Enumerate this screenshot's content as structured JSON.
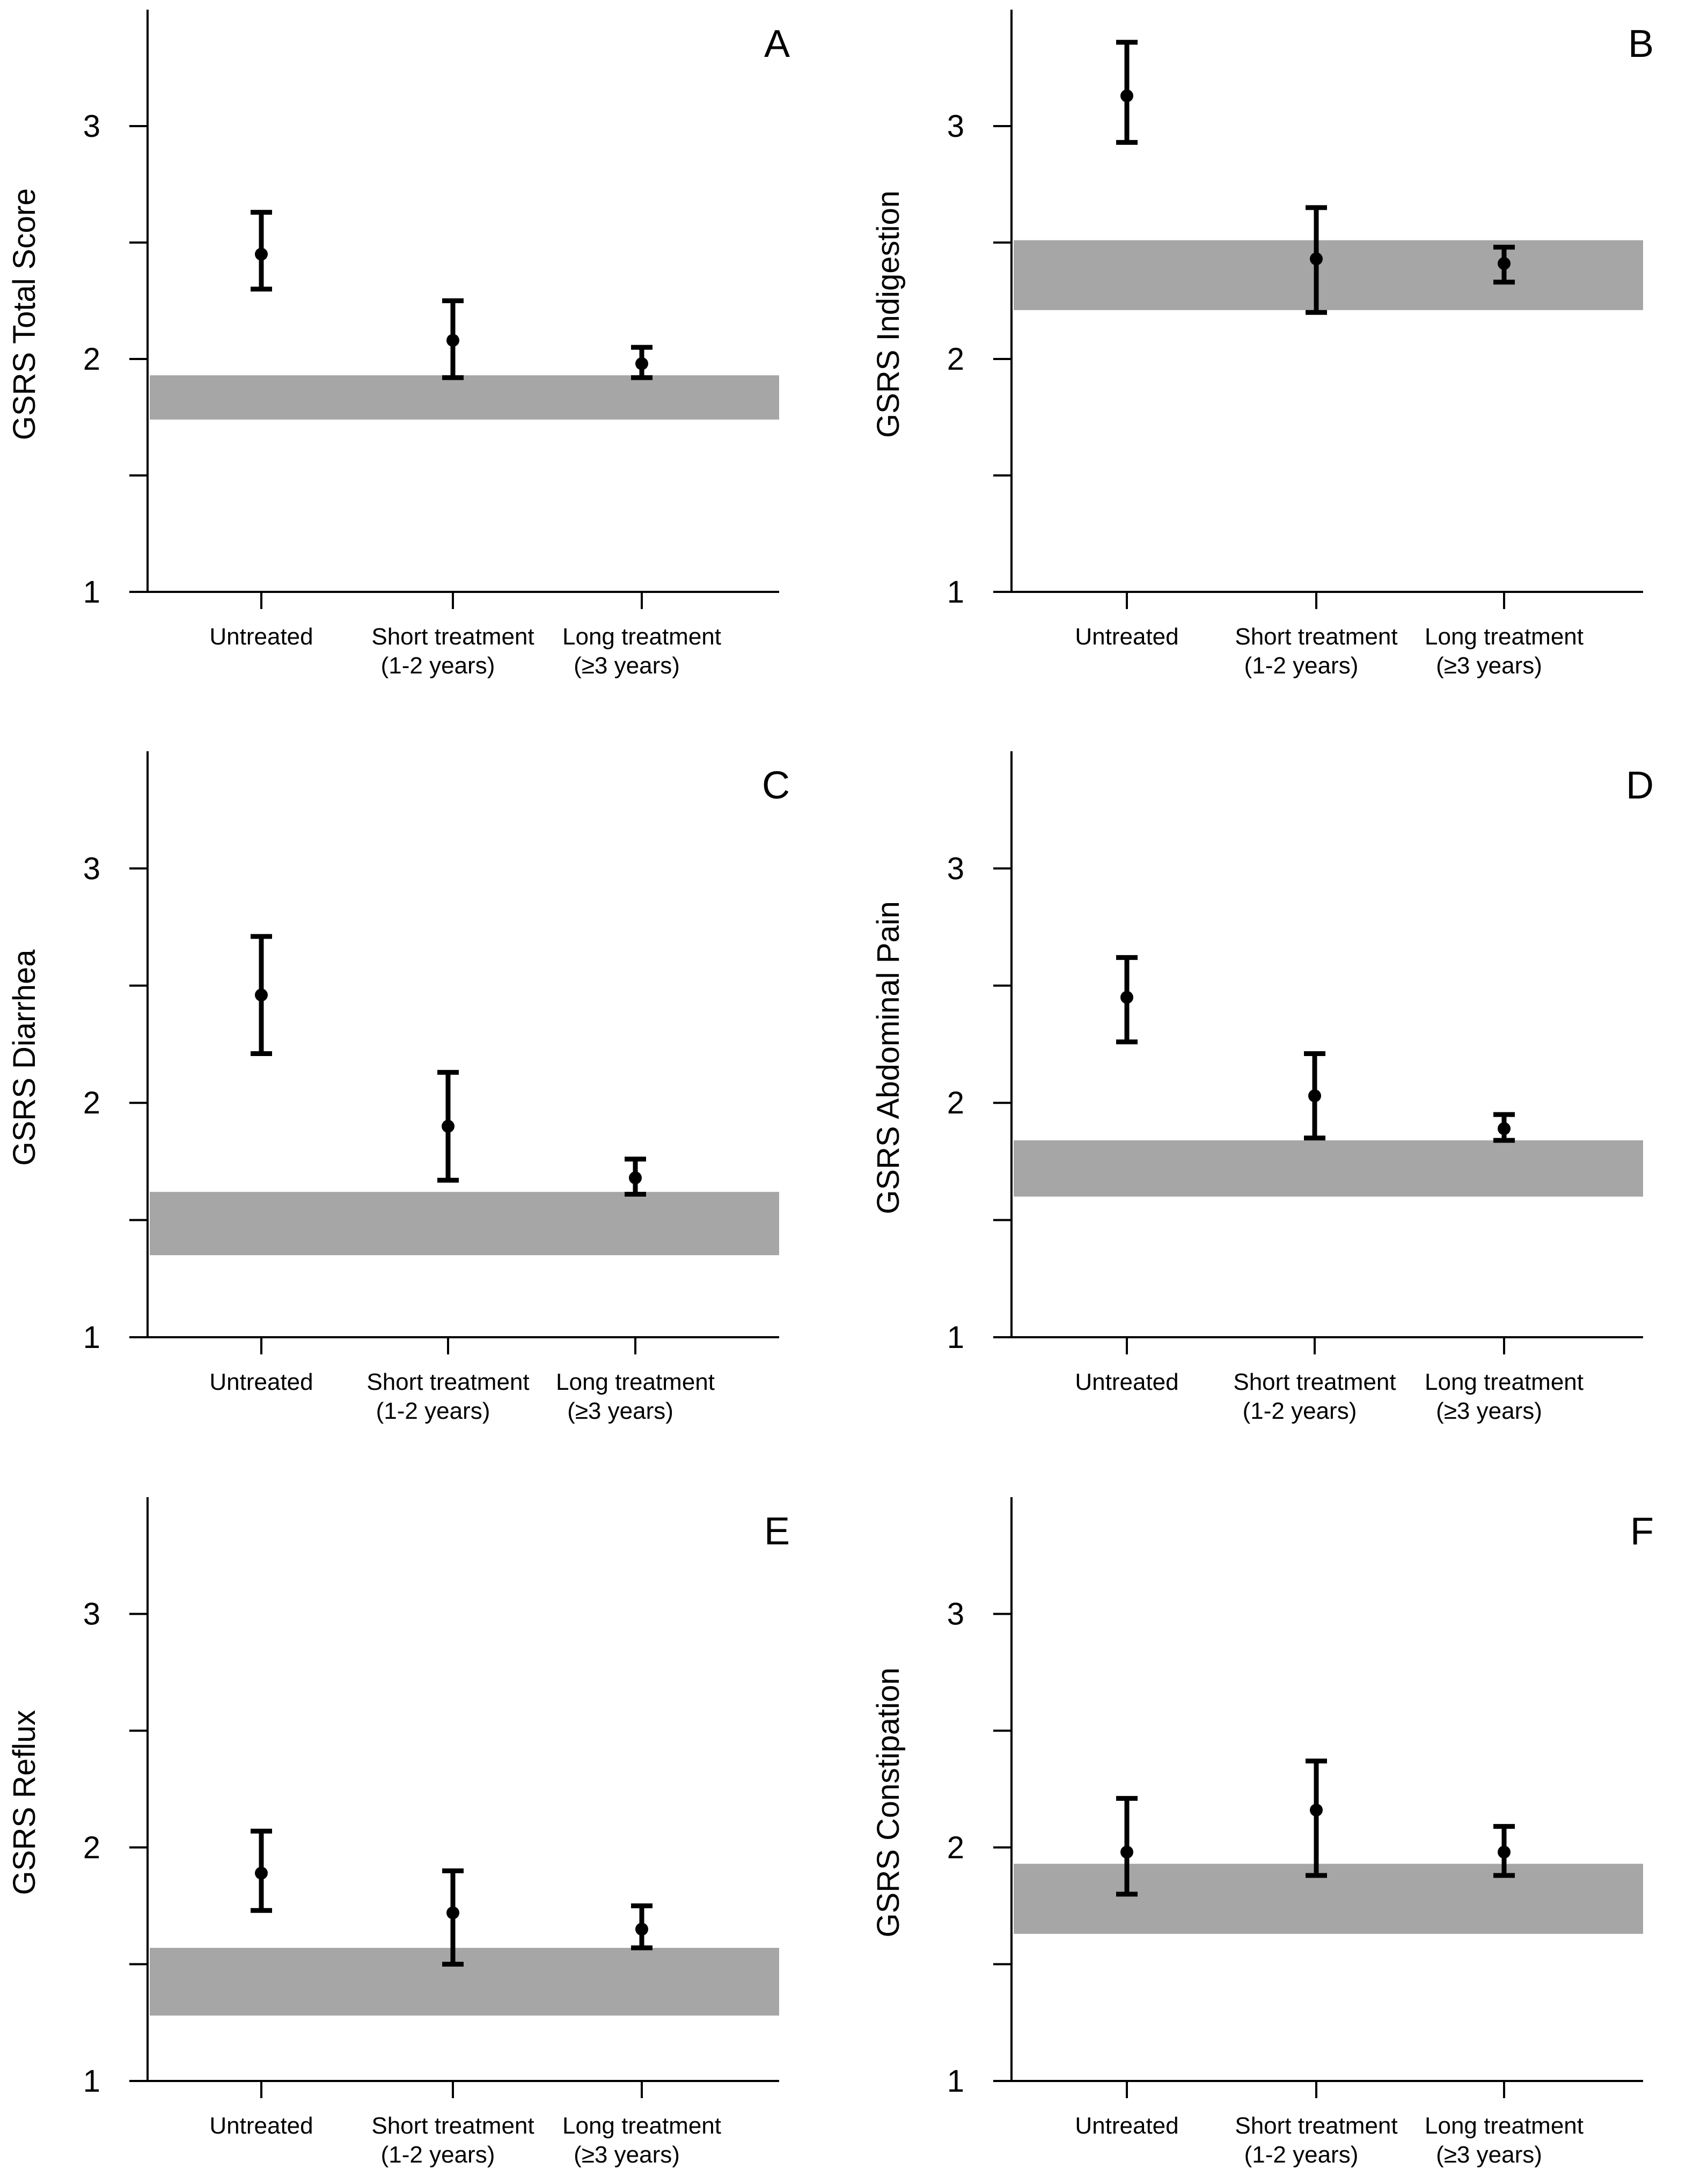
{
  "colors": {
    "reference_band": "#a6a6a6",
    "marks": "#000000",
    "background": "#ffffff"
  },
  "chart_data": [
    {
      "type": "scatter",
      "panel": "A",
      "ylabel": "GSRS Total Score",
      "ylim": [
        1,
        3.5
      ],
      "yticks": [
        1,
        1.5,
        2,
        2.5,
        3
      ],
      "ytick_labels": [
        "1",
        "",
        "2",
        "",
        "3"
      ],
      "categories": [
        [
          "Untreated"
        ],
        [
          "Short treatment",
          "(1-2 years)"
        ],
        [
          "Long treatment",
          "(≥3 years)"
        ]
      ],
      "values": [
        2.45,
        2.08,
        1.98
      ],
      "error_low": [
        2.3,
        1.92,
        1.92
      ],
      "error_high": [
        2.63,
        2.25,
        2.05
      ],
      "reference_band": [
        1.74,
        1.93
      ]
    },
    {
      "type": "scatter",
      "panel": "B",
      "ylabel": "GSRS Indigestion",
      "ylim": [
        1,
        3.5
      ],
      "yticks": [
        1,
        1.5,
        2,
        2.5,
        3
      ],
      "ytick_labels": [
        "1",
        "",
        "2",
        "",
        "3"
      ],
      "categories": [
        [
          "Untreated"
        ],
        [
          "Short treatment",
          "(1-2 years)"
        ],
        [
          "Long treatment",
          "(≥3 years)"
        ]
      ],
      "values": [
        3.13,
        2.43,
        2.41
      ],
      "error_low": [
        2.93,
        2.2,
        2.33
      ],
      "error_high": [
        3.36,
        2.65,
        2.48
      ],
      "reference_band": [
        2.21,
        2.51
      ]
    },
    {
      "type": "scatter",
      "panel": "C",
      "ylabel": "GSRS Diarrhea",
      "ylim": [
        1,
        3.5
      ],
      "yticks": [
        1,
        1.5,
        2,
        2.5,
        3
      ],
      "ytick_labels": [
        "1",
        "",
        "2",
        "",
        "3"
      ],
      "categories": [
        [
          "Untreated"
        ],
        [
          "Short treatment",
          "(1-2 years)"
        ],
        [
          "Long treatment",
          "(≥3 years)"
        ]
      ],
      "values": [
        2.46,
        1.9,
        1.68
      ],
      "error_low": [
        2.21,
        1.67,
        1.61
      ],
      "error_high": [
        2.71,
        2.13,
        1.76
      ],
      "reference_band": [
        1.35,
        1.62
      ]
    },
    {
      "type": "scatter",
      "panel": "D",
      "ylabel": "GSRS Abdominal Pain",
      "ylim": [
        1,
        3.5
      ],
      "yticks": [
        1,
        1.5,
        2,
        2.5,
        3
      ],
      "ytick_labels": [
        "1",
        "",
        "2",
        "",
        "3"
      ],
      "categories": [
        [
          "Untreated"
        ],
        [
          "Short treatment",
          "(1-2 years)"
        ],
        [
          "Long treatment",
          "(≥3 years)"
        ]
      ],
      "values": [
        2.45,
        2.03,
        1.89
      ],
      "error_low": [
        2.26,
        1.85,
        1.84
      ],
      "error_high": [
        2.62,
        2.21,
        1.95
      ],
      "reference_band": [
        1.6,
        1.84
      ]
    },
    {
      "type": "scatter",
      "panel": "E",
      "ylabel": "GSRS Reflux",
      "ylim": [
        1,
        3.5
      ],
      "yticks": [
        1,
        1.5,
        2,
        2.5,
        3
      ],
      "ytick_labels": [
        "1",
        "",
        "2",
        "",
        "3"
      ],
      "categories": [
        [
          "Untreated"
        ],
        [
          "Short treatment",
          "(1-2 years)"
        ],
        [
          "Long treatment",
          "(≥3 years)"
        ]
      ],
      "values": [
        1.89,
        1.72,
        1.65
      ],
      "error_low": [
        1.73,
        1.5,
        1.57
      ],
      "error_high": [
        2.07,
        1.9,
        1.75
      ],
      "reference_band": [
        1.28,
        1.57
      ]
    },
    {
      "type": "scatter",
      "panel": "F",
      "ylabel": "GSRS Constipation",
      "ylim": [
        1,
        3.5
      ],
      "yticks": [
        1,
        1.5,
        2,
        2.5,
        3
      ],
      "ytick_labels": [
        "1",
        "",
        "2",
        "",
        "3"
      ],
      "categories": [
        [
          "Untreated"
        ],
        [
          "Short treatment",
          "(1-2 years)"
        ],
        [
          "Long treatment",
          "(≥3 years)"
        ]
      ],
      "values": [
        1.98,
        2.16,
        1.98
      ],
      "error_low": [
        1.8,
        1.88,
        1.88
      ],
      "error_high": [
        2.21,
        2.37,
        2.09
      ],
      "reference_band": [
        1.63,
        1.93
      ]
    }
  ]
}
